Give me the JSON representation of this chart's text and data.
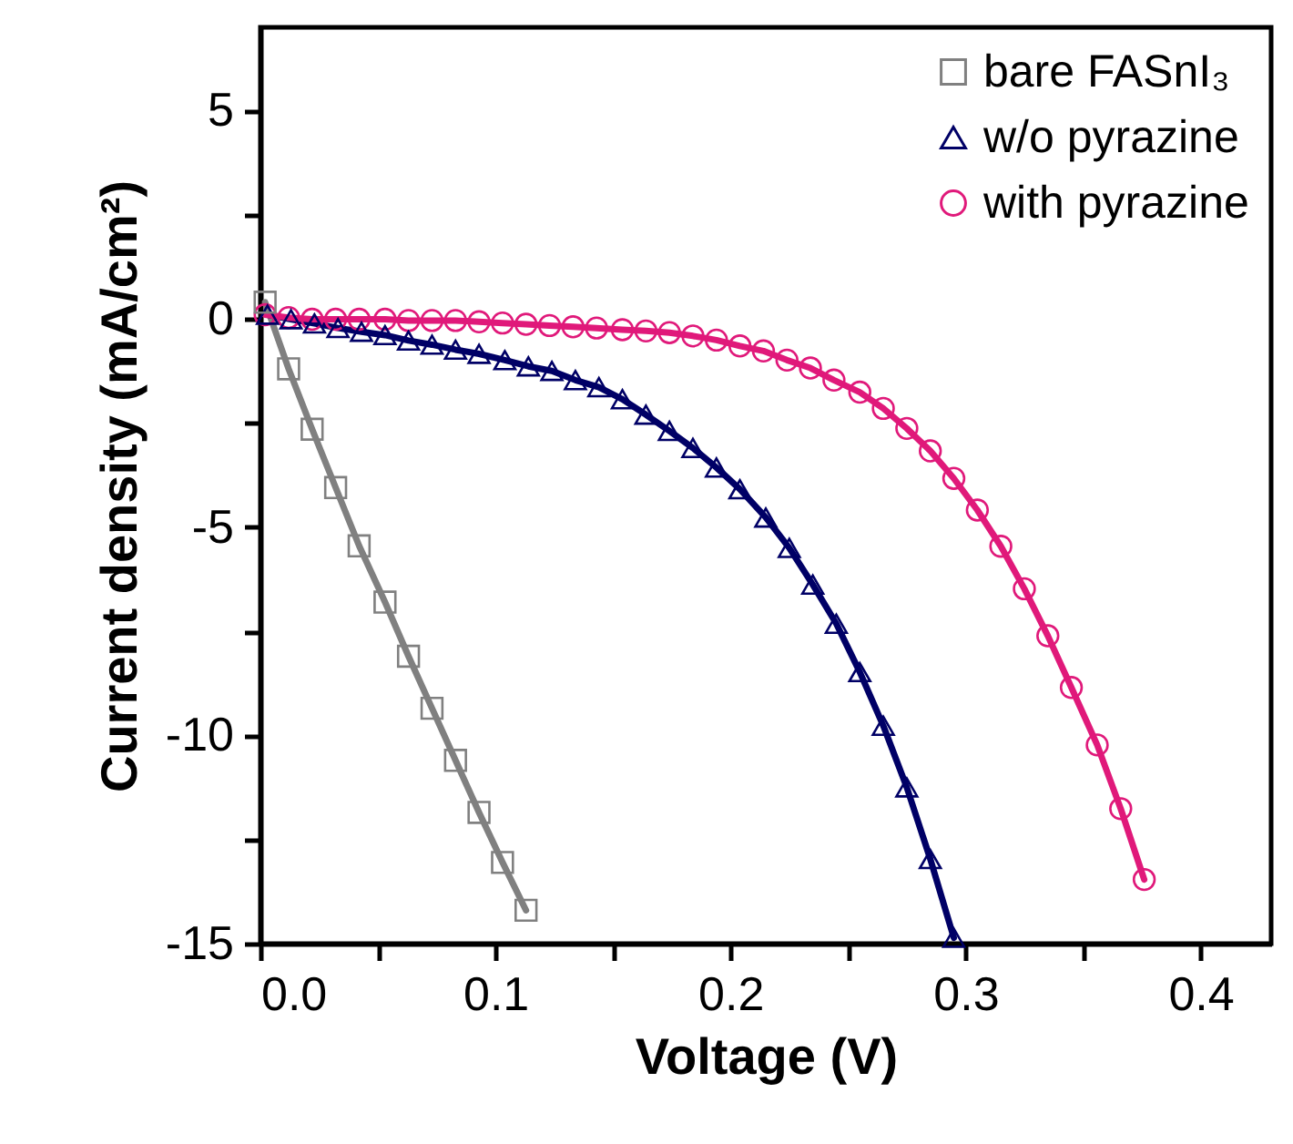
{
  "chart_data": {
    "type": "line",
    "xlabel": "Voltage (V)",
    "ylabel": "Current density (mA/cm²)",
    "xlim": [
      0,
      0.43
    ],
    "ylim": [
      -15,
      7
    ],
    "xticks": [
      {
        "value": 0,
        "label": "0.0"
      },
      {
        "value": 0.05,
        "label": null
      },
      {
        "value": 0.1,
        "label": "0.1"
      },
      {
        "value": 0.15,
        "label": null
      },
      {
        "value": 0.2,
        "label": "0.2"
      },
      {
        "value": 0.25,
        "label": null
      },
      {
        "value": 0.3,
        "label": "0.3"
      },
      {
        "value": 0.35,
        "label": null
      },
      {
        "value": 0.4,
        "label": "0.4"
      }
    ],
    "yticks": [
      -15,
      {
        "value": -12.5,
        "label": null
      },
      -10,
      {
        "value": -7.5,
        "label": null
      },
      -5,
      {
        "value": -2.5,
        "label": null
      },
      0,
      {
        "value": 2.5,
        "label": null
      },
      5
    ],
    "grid": false,
    "legend": "top right",
    "line_style": "solid",
    "series": [
      {
        "name": "bare FASnI₃",
        "color": "#808080",
        "marker": "square",
        "x": [
          0.002,
          0.012,
          0.022,
          0.032,
          0.042,
          0.053,
          0.063,
          0.073,
          0.083,
          0.093,
          0.103,
          0.113
        ],
        "values": [
          0.4,
          -1.2,
          -2.65,
          -4.05,
          -5.45,
          -6.8,
          -8.1,
          -9.35,
          -10.6,
          -11.85,
          -13.05,
          -14.2
        ]
      },
      {
        "name": "w/o pyrazine",
        "color": "#000066",
        "marker": "triangle",
        "x": [
          0.003,
          0.013,
          0.023,
          0.033,
          0.043,
          0.053,
          0.063,
          0.073,
          0.083,
          0.093,
          0.104,
          0.114,
          0.124,
          0.134,
          0.144,
          0.154,
          0.164,
          0.174,
          0.184,
          0.194,
          0.204,
          0.215,
          0.225,
          0.235,
          0.245,
          0.255,
          0.265,
          0.275,
          0.285,
          0.295
        ],
        "values": [
          0.1,
          -0.01,
          -0.11,
          -0.22,
          -0.31,
          -0.39,
          -0.52,
          -0.62,
          -0.74,
          -0.84,
          -0.99,
          -1.14,
          -1.25,
          -1.47,
          -1.64,
          -1.93,
          -2.3,
          -2.69,
          -3.1,
          -3.57,
          -4.09,
          -4.77,
          -5.5,
          -6.38,
          -7.32,
          -8.48,
          -9.77,
          -11.25,
          -12.97,
          -14.86
        ]
      },
      {
        "name": "with pyrazine",
        "color": "#e0197a",
        "marker": "circle",
        "x": [
          0.002,
          0.012,
          0.022,
          0.032,
          0.042,
          0.053,
          0.063,
          0.073,
          0.083,
          0.093,
          0.103,
          0.113,
          0.123,
          0.133,
          0.143,
          0.154,
          0.164,
          0.174,
          0.184,
          0.194,
          0.204,
          0.214,
          0.224,
          0.234,
          0.244,
          0.255,
          0.265,
          0.275,
          0.285,
          0.295,
          0.305,
          0.315,
          0.325,
          0.335,
          0.345,
          0.356,
          0.366,
          0.376
        ],
        "values": [
          0.1,
          0.03,
          -0.01,
          -0.01,
          -0.01,
          -0.01,
          -0.04,
          -0.04,
          -0.04,
          -0.07,
          -0.1,
          -0.13,
          -0.16,
          -0.19,
          -0.22,
          -0.26,
          -0.29,
          -0.33,
          -0.41,
          -0.51,
          -0.65,
          -0.77,
          -0.99,
          -1.18,
          -1.47,
          -1.76,
          -2.15,
          -2.63,
          -3.17,
          -3.83,
          -4.59,
          -5.46,
          -6.48,
          -7.61,
          -8.85,
          -10.23,
          -11.76,
          -13.46
        ]
      }
    ]
  }
}
